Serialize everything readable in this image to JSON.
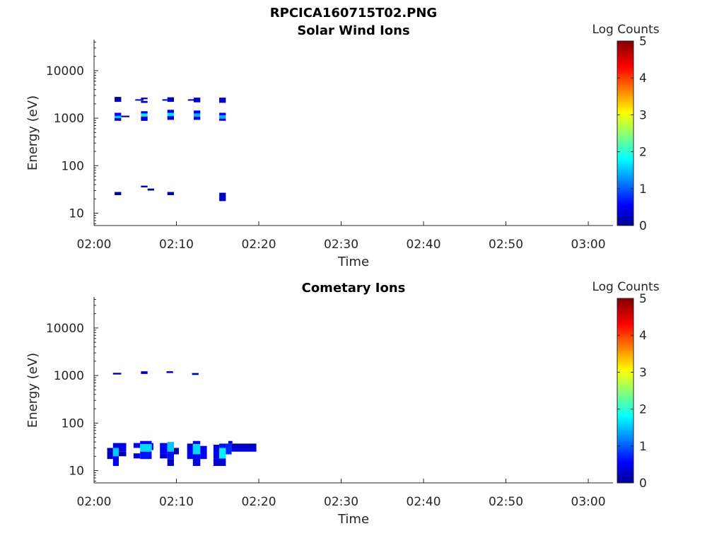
{
  "figure_title": "RPCICA160715T02.PNG",
  "chart_data": [
    {
      "type": "heatmap",
      "title": "Solar Wind Ions",
      "xlabel": "Time",
      "ylabel": "Energy (eV)",
      "y_scale": "log",
      "ylim": [
        5.5,
        45000
      ],
      "xlim": [
        "02:00",
        "03:03"
      ],
      "x_ticks": [
        "02:00",
        "02:10",
        "02:20",
        "02:30",
        "02:40",
        "02:50",
        "03:00"
      ],
      "y_ticks": [
        "10",
        "100",
        "1000",
        "10000"
      ],
      "colorbar": {
        "label": "Log Counts",
        "min": 0,
        "max": 5,
        "ticks": [
          "0",
          "1",
          "2",
          "3",
          "4",
          "5"
        ],
        "colormap": "jet"
      },
      "cells": [
        {
          "t0": 2.5,
          "t1": 3.3,
          "e0": 2200,
          "e1": 2800,
          "v": 0.2
        },
        {
          "t0": 2.5,
          "t1": 3.3,
          "e0": 1120,
          "e1": 1300,
          "v": 0.6
        },
        {
          "t0": 2.5,
          "t1": 3.3,
          "e0": 1000,
          "e1": 1120,
          "v": 1.6
        },
        {
          "t0": 2.5,
          "t1": 3.3,
          "e0": 880,
          "e1": 1000,
          "v": 0.3
        },
        {
          "t0": 3.3,
          "t1": 4.3,
          "e0": 1050,
          "e1": 1130,
          "v": 0.2
        },
        {
          "t0": 2.5,
          "t1": 3.3,
          "e0": 24,
          "e1": 28,
          "v": 0.2
        },
        {
          "t0": 5.0,
          "t1": 6.0,
          "e0": 2350,
          "e1": 2500,
          "v": 0.2
        },
        {
          "t0": 5.7,
          "t1": 6.5,
          "e0": 2500,
          "e1": 2700,
          "v": 0.2
        },
        {
          "t0": 5.7,
          "t1": 6.5,
          "e0": 2100,
          "e1": 2300,
          "v": 0.3
        },
        {
          "t0": 5.7,
          "t1": 6.5,
          "e0": 1250,
          "e1": 1400,
          "v": 0.6
        },
        {
          "t0": 5.7,
          "t1": 6.5,
          "e0": 1080,
          "e1": 1250,
          "v": 1.8
        },
        {
          "t0": 5.7,
          "t1": 6.5,
          "e0": 880,
          "e1": 1080,
          "v": 0.4
        },
        {
          "t0": 5.7,
          "t1": 6.5,
          "e0": 35,
          "e1": 38,
          "v": 0.2
        },
        {
          "t0": 6.5,
          "t1": 7.3,
          "e0": 30,
          "e1": 33,
          "v": 0.2
        },
        {
          "t0": 8.3,
          "t1": 8.9,
          "e0": 2350,
          "e1": 2500,
          "v": 0.2
        },
        {
          "t0": 8.9,
          "t1": 9.7,
          "e0": 2200,
          "e1": 2750,
          "v": 0.3
        },
        {
          "t0": 8.9,
          "t1": 9.7,
          "e0": 1300,
          "e1": 1500,
          "v": 0.6
        },
        {
          "t0": 8.9,
          "t1": 9.7,
          "e0": 1100,
          "e1": 1300,
          "v": 1.7
        },
        {
          "t0": 8.9,
          "t1": 9.7,
          "e0": 920,
          "e1": 1100,
          "v": 0.4
        },
        {
          "t0": 8.9,
          "t1": 9.7,
          "e0": 24,
          "e1": 28,
          "v": 0.2
        },
        {
          "t0": 11.4,
          "t1": 12.1,
          "e0": 2350,
          "e1": 2500,
          "v": 0.2
        },
        {
          "t0": 12.1,
          "t1": 12.9,
          "e0": 2150,
          "e1": 2700,
          "v": 0.3
        },
        {
          "t0": 12.1,
          "t1": 12.9,
          "e0": 1250,
          "e1": 1450,
          "v": 0.6
        },
        {
          "t0": 12.1,
          "t1": 12.9,
          "e0": 1070,
          "e1": 1250,
          "v": 1.5
        },
        {
          "t0": 12.1,
          "t1": 12.9,
          "e0": 920,
          "e1": 1070,
          "v": 0.4
        },
        {
          "t0": 15.2,
          "t1": 16.0,
          "e0": 2100,
          "e1": 2700,
          "v": 0.3
        },
        {
          "t0": 15.2,
          "t1": 16.0,
          "e0": 1150,
          "e1": 1300,
          "v": 0.6
        },
        {
          "t0": 15.2,
          "t1": 16.0,
          "e0": 980,
          "e1": 1150,
          "v": 1.5
        },
        {
          "t0": 15.2,
          "t1": 16.0,
          "e0": 880,
          "e1": 980,
          "v": 0.4
        },
        {
          "t0": 15.2,
          "t1": 16.0,
          "e0": 18,
          "e1": 27,
          "v": 0.3
        }
      ]
    },
    {
      "type": "heatmap",
      "title": "Cometary Ions",
      "xlabel": "Time",
      "ylabel": "Energy (eV)",
      "y_scale": "log",
      "ylim": [
        5.5,
        45000
      ],
      "xlim": [
        "02:00",
        "03:03"
      ],
      "x_ticks": [
        "02:00",
        "02:10",
        "02:20",
        "02:30",
        "02:40",
        "02:50",
        "03:00"
      ],
      "y_ticks": [
        "10",
        "100",
        "1000",
        "10000"
      ],
      "colorbar": {
        "label": "Log Counts",
        "min": 0,
        "max": 5,
        "ticks": [
          "0",
          "1",
          "2",
          "3",
          "4",
          "5"
        ],
        "colormap": "jet"
      },
      "cells": [
        {
          "t0": 2.3,
          "t1": 3.3,
          "e0": 1050,
          "e1": 1140,
          "v": 0.2
        },
        {
          "t0": 5.7,
          "t1": 6.5,
          "e0": 1080,
          "e1": 1230,
          "v": 0.5
        },
        {
          "t0": 8.8,
          "t1": 9.6,
          "e0": 1130,
          "e1": 1230,
          "v": 0.3
        },
        {
          "t0": 11.9,
          "t1": 12.7,
          "e0": 1030,
          "e1": 1130,
          "v": 0.2
        },
        {
          "t0": 1.6,
          "t1": 2.3,
          "e0": 17.5,
          "e1": 30,
          "v": 0.3
        },
        {
          "t0": 2.3,
          "t1": 3.0,
          "e0": 30,
          "e1": 38,
          "v": 0.5
        },
        {
          "t0": 2.3,
          "t1": 3.0,
          "e0": 20,
          "e1": 30,
          "v": 1.6
        },
        {
          "t0": 2.3,
          "t1": 3.0,
          "e0": 12.5,
          "e1": 20,
          "v": 0.6
        },
        {
          "t0": 3.0,
          "t1": 3.9,
          "e0": 25,
          "e1": 38,
          "v": 0.5
        },
        {
          "t0": 3.0,
          "t1": 3.9,
          "e0": 20,
          "e1": 25,
          "v": 0.2
        },
        {
          "t0": 4.8,
          "t1": 5.6,
          "e0": 30,
          "e1": 38,
          "v": 0.5
        },
        {
          "t0": 4.8,
          "t1": 5.6,
          "e0": 18,
          "e1": 23,
          "v": 0.4
        },
        {
          "t0": 5.6,
          "t1": 7.0,
          "e0": 36,
          "e1": 42,
          "v": 0.6
        },
        {
          "t0": 5.6,
          "t1": 7.0,
          "e0": 25,
          "e1": 36,
          "v": 1.7
        },
        {
          "t0": 5.6,
          "t1": 7.0,
          "e0": 17.5,
          "e1": 25,
          "v": 0.7
        },
        {
          "t0": 7.0,
          "t1": 7.2,
          "e0": 27,
          "e1": 38,
          "v": 0.4
        },
        {
          "t0": 8.0,
          "t1": 8.9,
          "e0": 23,
          "e1": 38,
          "v": 0.6
        },
        {
          "t0": 8.0,
          "t1": 8.9,
          "e0": 18,
          "e1": 23,
          "v": 0.4
        },
        {
          "t0": 8.9,
          "t1": 9.7,
          "e0": 25,
          "e1": 40,
          "v": 1.6
        },
        {
          "t0": 8.9,
          "t1": 9.7,
          "e0": 17.5,
          "e1": 25,
          "v": 0.7
        },
        {
          "t0": 8.9,
          "t1": 9.7,
          "e0": 12.5,
          "e1": 17.5,
          "v": 0.3
        },
        {
          "t0": 9.7,
          "t1": 10.3,
          "e0": 22,
          "e1": 30,
          "v": 0.2
        },
        {
          "t0": 11.3,
          "t1": 12.0,
          "e0": 30,
          "e1": 37,
          "v": 0.4
        },
        {
          "t0": 11.3,
          "t1": 12.0,
          "e0": 17.5,
          "e1": 30,
          "v": 0.6
        },
        {
          "t0": 12.0,
          "t1": 12.9,
          "e0": 36,
          "e1": 42,
          "v": 0.5
        },
        {
          "t0": 12.0,
          "t1": 12.9,
          "e0": 22,
          "e1": 36,
          "v": 1.7
        },
        {
          "t0": 12.0,
          "t1": 12.9,
          "e0": 12.5,
          "e1": 22,
          "v": 0.5
        },
        {
          "t0": 12.9,
          "t1": 13.7,
          "e0": 17.5,
          "e1": 33,
          "v": 0.6
        },
        {
          "t0": 14.5,
          "t1": 15.2,
          "e0": 18,
          "e1": 35,
          "v": 0.5
        },
        {
          "t0": 14.5,
          "t1": 16.0,
          "e0": 12.5,
          "e1": 18,
          "v": 0.4
        },
        {
          "t0": 15.2,
          "t1": 16.0,
          "e0": 30,
          "e1": 37,
          "v": 0.7
        },
        {
          "t0": 15.2,
          "t1": 16.0,
          "e0": 18,
          "e1": 30,
          "v": 1.8
        },
        {
          "t0": 16.0,
          "t1": 16.7,
          "e0": 22,
          "e1": 37,
          "v": 0.8
        },
        {
          "t0": 16.3,
          "t1": 16.8,
          "e0": 37,
          "e1": 42,
          "v": 0.3
        },
        {
          "t0": 16.7,
          "t1": 19.7,
          "e0": 30,
          "e1": 37,
          "v": 0.3
        },
        {
          "t0": 16.7,
          "t1": 19.7,
          "e0": 25,
          "e1": 30,
          "v": 0.5
        }
      ]
    }
  ]
}
